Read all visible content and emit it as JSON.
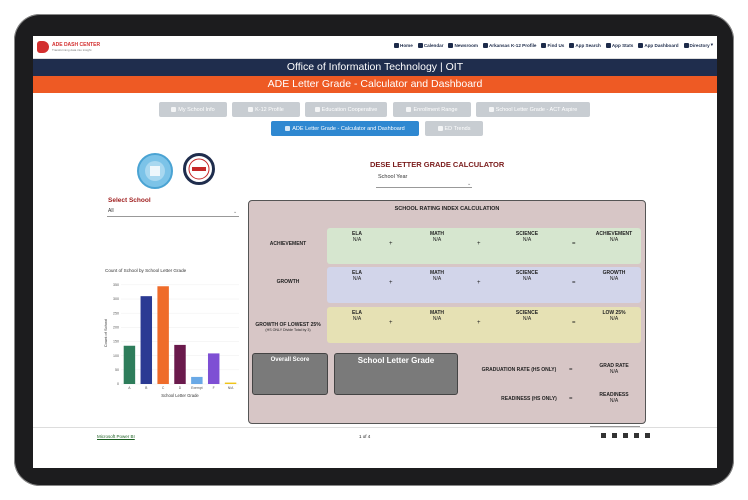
{
  "site": {
    "logo_line1": "ADE DASH CENTER",
    "logo_line2": "Transforming data into insight"
  },
  "nav": [
    "Home",
    "Calendar",
    "Newsroom",
    "Arkansas K-12 Profile",
    "Find Us",
    "App Search",
    "App Stats",
    "App Dashboard",
    "Directory"
  ],
  "header": {
    "office": "Office of Information Technology | OIT",
    "subtitle": "ADE Letter Grade - Calculator and Dashboard"
  },
  "buttons": {
    "row1": [
      "My School Info",
      "K-12 Profile",
      "Education Cooperative",
      "Enrollment Range",
      "School Letter Grade - ACT Aspire"
    ],
    "row2": [
      "ADE Letter Grade - Calculator and Dashboard",
      "ED Trends"
    ]
  },
  "calculator": {
    "title": "DESE LETTER GRADE CALCULATOR",
    "school_year_label": "School Year"
  },
  "select_school": {
    "label": "Select School",
    "value": "All"
  },
  "chart_data": {
    "type": "bar",
    "title": "Count of School by School Letter Grade",
    "xlabel": "School Letter Grade",
    "ylabel": "Count of School",
    "categories": [
      "A",
      "B",
      "C",
      "D",
      "Exempt",
      "F",
      "N/A"
    ],
    "values": [
      135,
      310,
      345,
      138,
      25,
      108,
      5
    ],
    "colors": [
      "#2e7d5b",
      "#2b3a93",
      "#ef6c2a",
      "#6a1a4c",
      "#6aa9e6",
      "#7e4fd4",
      "#f0c419"
    ],
    "yticks": [
      0,
      50,
      100,
      150,
      200,
      250,
      300,
      350
    ],
    "ylim": [
      0,
      360
    ]
  },
  "rating": {
    "title": "SCHOOL RATING INDEX CALCULATION",
    "rows": [
      {
        "label": "ACHIEVEMENT",
        "sublabel": "",
        "cells": [
          {
            "h": "ELA",
            "v": "N/A"
          },
          {
            "h": "MATH",
            "v": "N/A"
          },
          {
            "h": "SCIENCE",
            "v": "N/A"
          }
        ],
        "result_h": "ACHIEVEMENT",
        "result_v": "N/A",
        "color": "#d6e6cf"
      },
      {
        "label": "GROWTH",
        "sublabel": "",
        "cells": [
          {
            "h": "ELA",
            "v": "N/A"
          },
          {
            "h": "MATH",
            "v": "N/A"
          },
          {
            "h": "SCIENCE",
            "v": "N/A"
          }
        ],
        "result_h": "GROWTH",
        "result_v": "N/A",
        "color": "#d2d5ea"
      },
      {
        "label": "GROWTH OF LOWEST 25%",
        "sublabel": "(HS ONLY Divide Total by 3)",
        "cells": [
          {
            "h": "ELA",
            "v": "N/A"
          },
          {
            "h": "MATH",
            "v": "N/A"
          },
          {
            "h": "SCIENCE",
            "v": "N/A"
          }
        ],
        "result_h": "LOW 25%",
        "result_v": "N/A",
        "color": "#e6e1b4"
      }
    ],
    "plus": "+",
    "equals": "=",
    "overall_score": "Overall Score",
    "school_letter_grade": "School Letter Grade",
    "grad_rate_label": "GRADUATION RATE (HS ONLY)",
    "grad_rate_h": "GRAD RATE",
    "grad_rate_v": "N/A",
    "readiness_label": "READINESS (HS ONLY)",
    "readiness_h": "READINESS",
    "readiness_v": "N/A"
  },
  "footer": {
    "powerbi": "Microsoft Power BI",
    "page": "1 of 4"
  }
}
